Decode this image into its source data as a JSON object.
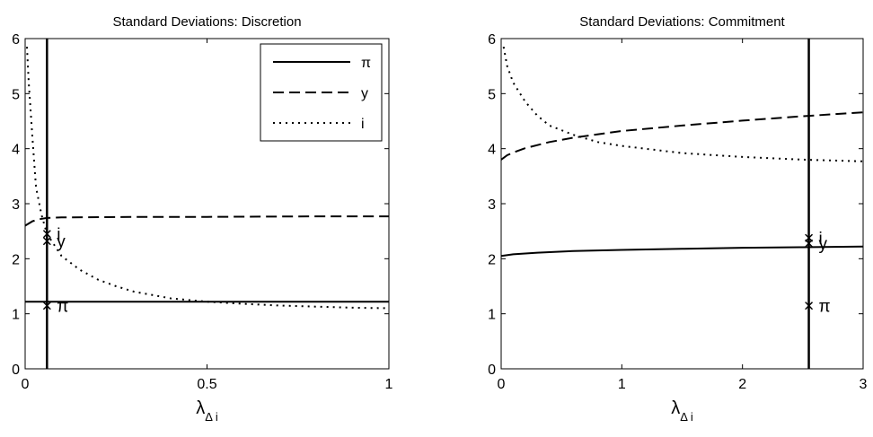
{
  "chart_data": [
    {
      "type": "line",
      "title": "Standard Deviations: Discretion",
      "xlabel": "λ",
      "xlabel_subscript": "Δ i",
      "ylabel": "",
      "xlim": [
        0,
        1
      ],
      "ylim": [
        0,
        6
      ],
      "xticks": [
        0,
        0.5,
        1
      ],
      "xtick_labels": [
        "0",
        "0.5",
        "1"
      ],
      "yticks": [
        0,
        1,
        2,
        3,
        4,
        5,
        6
      ],
      "ytick_labels": [
        "0",
        "1",
        "2",
        "3",
        "4",
        "5",
        "6"
      ],
      "grid": false,
      "legend": {
        "placement": "top-right",
        "entries": [
          "π",
          "y",
          "i"
        ]
      },
      "series": [
        {
          "name": "π",
          "style": "solid",
          "x": [
            0,
            0.06,
            0.1,
            0.2,
            0.5,
            1.0
          ],
          "y": [
            1.22,
            1.22,
            1.22,
            1.22,
            1.22,
            1.22
          ]
        },
        {
          "name": "y",
          "style": "dashed",
          "x": [
            0,
            0.02,
            0.04,
            0.06,
            0.1,
            0.3,
            0.5,
            0.8,
            1.0
          ],
          "y": [
            2.6,
            2.68,
            2.72,
            2.74,
            2.75,
            2.76,
            2.76,
            2.77,
            2.77
          ]
        },
        {
          "name": "i",
          "style": "dotted",
          "x": [
            0.005,
            0.01,
            0.02,
            0.03,
            0.045,
            0.06,
            0.08,
            0.1,
            0.15,
            0.2,
            0.25,
            0.3,
            0.4,
            0.5,
            0.6,
            0.7,
            0.8,
            0.9,
            1.0
          ],
          "y": [
            5.85,
            5.2,
            4.2,
            3.3,
            2.8,
            2.45,
            2.25,
            2.05,
            1.8,
            1.62,
            1.5,
            1.4,
            1.28,
            1.22,
            1.18,
            1.15,
            1.13,
            1.11,
            1.1
          ]
        }
      ],
      "vertical_line": {
        "x": 0.06
      },
      "markers": [
        {
          "label": "π",
          "x": 0.06,
          "y": 1.15
        },
        {
          "label": "y",
          "x": 0.06,
          "y": 2.32
        },
        {
          "label": "i",
          "x": 0.06,
          "y": 2.45
        }
      ]
    },
    {
      "type": "line",
      "title": "Standard Deviations: Commitment",
      "xlabel": "λ",
      "xlabel_subscript": "Δ i",
      "ylabel": "",
      "xlim": [
        0,
        3
      ],
      "ylim": [
        0,
        6
      ],
      "xticks": [
        0,
        1,
        2,
        3
      ],
      "xtick_labels": [
        "0",
        "1",
        "2",
        "3"
      ],
      "yticks": [
        0,
        1,
        2,
        3,
        4,
        5,
        6
      ],
      "ytick_labels": [
        "0",
        "1",
        "2",
        "3",
        "4",
        "5",
        "6"
      ],
      "grid": false,
      "legend": null,
      "series": [
        {
          "name": "π",
          "style": "solid",
          "x": [
            0,
            0.1,
            0.3,
            0.6,
            1.0,
            1.5,
            2.0,
            2.5,
            3.0
          ],
          "y": [
            2.05,
            2.08,
            2.11,
            2.14,
            2.16,
            2.18,
            2.2,
            2.21,
            2.22
          ]
        },
        {
          "name": "y",
          "style": "dashed",
          "x": [
            0,
            0.05,
            0.1,
            0.2,
            0.4,
            0.6,
            1.0,
            1.5,
            2.0,
            2.5,
            3.0
          ],
          "y": [
            3.8,
            3.88,
            3.93,
            4.01,
            4.12,
            4.2,
            4.32,
            4.42,
            4.51,
            4.59,
            4.66
          ]
        },
        {
          "name": "i",
          "style": "dotted",
          "x": [
            0.02,
            0.05,
            0.1,
            0.2,
            0.3,
            0.4,
            0.6,
            0.8,
            1.0,
            1.5,
            2.0,
            2.5,
            3.0
          ],
          "y": [
            5.85,
            5.5,
            5.2,
            4.85,
            4.6,
            4.42,
            4.25,
            4.12,
            4.05,
            3.92,
            3.85,
            3.8,
            3.77
          ]
        }
      ],
      "vertical_line": {
        "x": 2.55
      },
      "markers": [
        {
          "label": "π",
          "x": 2.55,
          "y": 1.15
        },
        {
          "label": "y",
          "x": 2.55,
          "y": 2.28
        },
        {
          "label": "i",
          "x": 2.55,
          "y": 2.38
        }
      ]
    }
  ]
}
